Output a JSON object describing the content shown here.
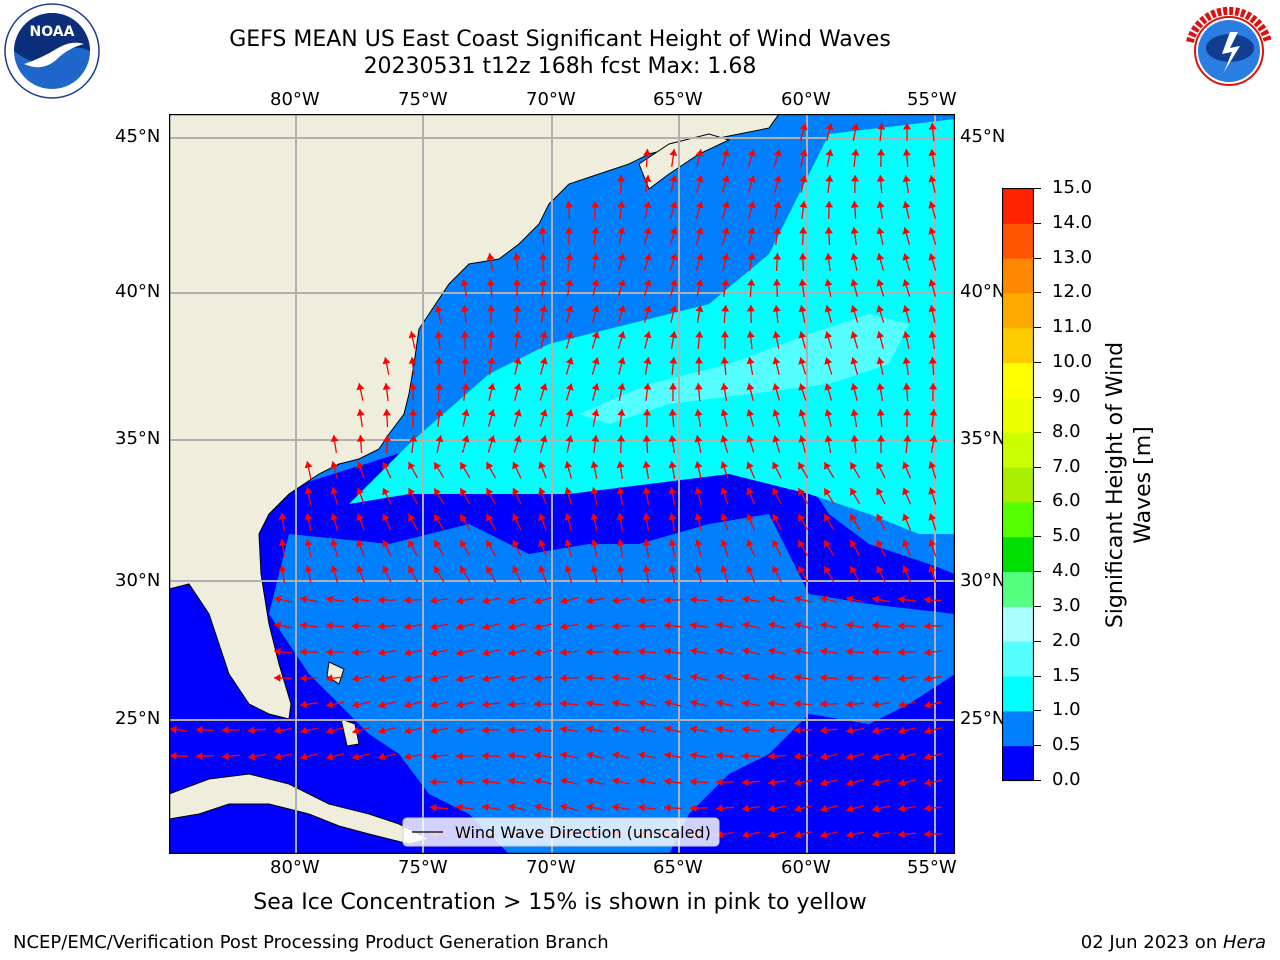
{
  "title": {
    "line1": "GEFS MEAN US East Coast Significant Height of Wind Waves",
    "line2": "20230531 t12z 168h fcst   Max: 1.68"
  },
  "chart_data": {
    "type": "map",
    "lon_labels": [
      "80°W",
      "75°W",
      "70°W",
      "65°W",
      "60°W",
      "55°W"
    ],
    "lat_labels": [
      "45°N",
      "40°N",
      "35°N",
      "30°N",
      "25°N"
    ],
    "legend": "Wind Wave Direction (unscaled)",
    "max_value": 1.68
  },
  "colorbar": {
    "label_line1": "Significant Height of Wind",
    "label_line2": "Waves [m]",
    "ticks": [
      "0.0",
      "0.5",
      "1.0",
      "1.5",
      "2.0",
      "3.0",
      "4.0",
      "5.0",
      "6.0",
      "7.0",
      "8.0",
      "9.0",
      "10.0",
      "11.0",
      "12.0",
      "13.0",
      "14.0",
      "15.0"
    ],
    "colors": [
      "#0000ff",
      "#0080ff",
      "#00ffff",
      "#55ffff",
      "#aaffff",
      "#55ff80",
      "#00e000",
      "#55ff00",
      "#aaee00",
      "#ccff00",
      "#eeff00",
      "#ffff00",
      "#ffcc00",
      "#ffaa00",
      "#ff8800",
      "#ff5500",
      "#ff2200",
      "#ff0000"
    ]
  },
  "footer": {
    "ice_note": "Sea Ice Concentration > 15% is shown in pink to yellow",
    "credit": "NCEP/EMC/Verification Post Processing Product Generation Branch",
    "date": "02 Jun 2023 on ",
    "host": "Hera"
  },
  "colors": {
    "land": "#efeedc",
    "arrows": "#ff0000",
    "grid": "#b0b0b0"
  },
  "logos": {
    "left": "NOAA",
    "right_text": "NATIONAL WEATHER SERVICE"
  }
}
